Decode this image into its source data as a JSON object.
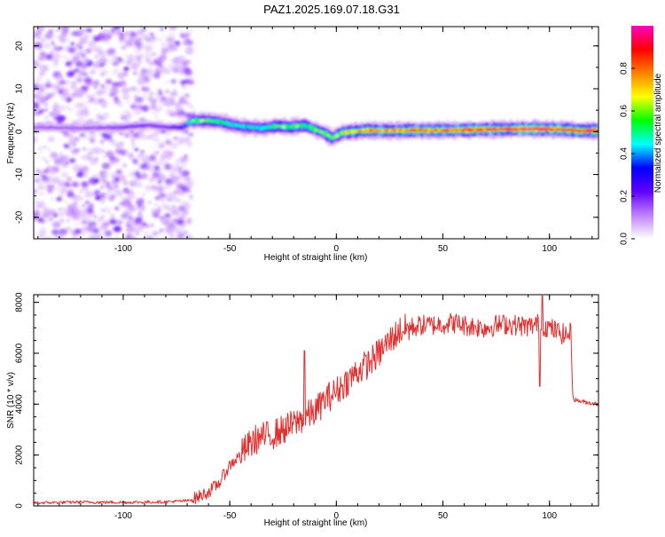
{
  "figure": {
    "title": "PAZ1.2025.169.07.18.G31"
  },
  "chart_data": [
    {
      "type": "heatmap",
      "name": "spectrogram",
      "xlabel": "Height of straight line (km)",
      "ylabel": "Frequency (Hz)",
      "xlim": [
        -142,
        123
      ],
      "ylim": [
        -25,
        24.5
      ],
      "xticks": [
        -100,
        -50,
        0,
        50,
        100
      ],
      "yticks": [
        -20,
        -10,
        0,
        10,
        20
      ],
      "noise_region_x": [
        -142,
        -68
      ],
      "ridge": {
        "x": [
          -142,
          -120,
          -100,
          -88,
          -80,
          -72,
          -68,
          -62,
          -55,
          -45,
          -35,
          -28,
          -22,
          -15,
          -10,
          -5,
          -2,
          0,
          3,
          8,
          15,
          25,
          40,
          55,
          70,
          85,
          95,
          105,
          115,
          123
        ],
        "frequency": [
          1,
          0.8,
          1.0,
          1.5,
          1.0,
          1.0,
          2.5,
          2.6,
          2.3,
          1.2,
          0.8,
          1.3,
          1.0,
          1.5,
          0.5,
          -0.5,
          -1.5,
          -1.0,
          -0.2,
          0,
          0.3,
          0.2,
          0.3,
          0.3,
          0.5,
          0.6,
          0.6,
          0.5,
          0.2,
          0.2
        ],
        "intensity": [
          0.15,
          0.15,
          0.2,
          0.2,
          0.2,
          0.3,
          0.55,
          0.6,
          0.5,
          0.45,
          0.5,
          0.55,
          0.6,
          0.55,
          0.6,
          0.6,
          0.55,
          0.6,
          0.65,
          0.7,
          0.75,
          0.75,
          0.8,
          0.8,
          0.85,
          0.85,
          0.9,
          0.85,
          0.85,
          0.85
        ]
      },
      "colorbar": {
        "label": "Normalized spectral amplitude",
        "range": [
          0,
          1
        ],
        "ticks": [
          "0.0",
          "0.2",
          "0.4",
          "0.6",
          "0.8"
        ],
        "tick_values": [
          0,
          0.2,
          0.4,
          0.6,
          0.8
        ],
        "colormap": [
          "#ffffff",
          "#c080ff",
          "#6000ff",
          "#0000ff",
          "#00ffff",
          "#00ff00",
          "#ffff00",
          "#ff8000",
          "#ff0000",
          "#ff00c0"
        ]
      }
    },
    {
      "type": "line",
      "name": "snr",
      "xlabel": "Height of straight line (km)",
      "ylabel": "SNR (10 * v/v)",
      "xlim": [
        -142,
        123
      ],
      "ylim": [
        0,
        8300
      ],
      "xticks": [
        -100,
        -50,
        0,
        50,
        100
      ],
      "yticks": [
        0,
        2000,
        4000,
        6000,
        8000
      ],
      "color": "#e03030",
      "series": [
        {
          "x": [
            -142,
            -120,
            -100,
            -80,
            -70,
            -65,
            -60,
            -55,
            -50,
            -45,
            -42,
            -38,
            -35,
            -30,
            -25,
            -20,
            -15,
            -10,
            -5,
            0,
            5,
            10,
            15,
            20,
            25,
            30,
            35,
            40,
            45,
            50,
            55,
            60,
            65,
            70,
            75,
            80,
            85,
            90,
            95,
            100,
            105,
            108,
            110,
            111,
            115,
            123
          ],
          "y": [
            120,
            150,
            140,
            160,
            200,
            350,
            550,
            900,
            1600,
            2000,
            2300,
            2600,
            2700,
            2800,
            3000,
            3200,
            3500,
            3700,
            4200,
            4500,
            4900,
            5300,
            5600,
            6000,
            6500,
            6900,
            7000,
            7100,
            7100,
            7150,
            7200,
            7100,
            7050,
            7000,
            7100,
            7150,
            7100,
            7050,
            7150,
            7000,
            6800,
            6700,
            6800,
            4200,
            4100,
            4000
          ]
        }
      ]
    }
  ]
}
